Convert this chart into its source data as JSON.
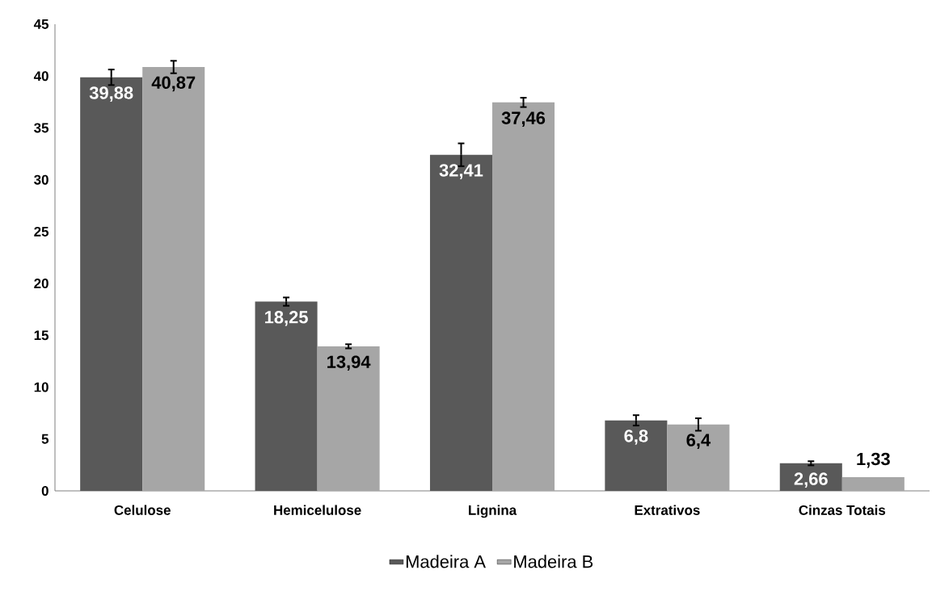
{
  "chart_data": {
    "type": "bar",
    "categories": [
      "Celulose",
      "Hemicelulose",
      "Lignina",
      "Extrativos",
      "Cinzas Totais"
    ],
    "series": [
      {
        "name": "Madeira A",
        "color": "#595959",
        "values": [
          39.88,
          18.25,
          32.41,
          6.8,
          2.66
        ],
        "errors": [
          0.75,
          0.4,
          1.1,
          0.5,
          0.2
        ],
        "value_labels": [
          "39,88",
          "18,25",
          "32,41",
          "6,8",
          "2,66"
        ]
      },
      {
        "name": "Madeira B",
        "color": "#a6a6a6",
        "values": [
          40.87,
          13.94,
          37.46,
          6.4,
          1.33
        ],
        "errors": [
          0.6,
          0.2,
          0.45,
          0.6,
          null
        ],
        "value_labels": [
          "40,87",
          "13,94",
          "37,46",
          "6,4",
          "1,33"
        ]
      }
    ],
    "ylim": [
      0,
      45
    ],
    "yticks": [
      0,
      5,
      10,
      15,
      20,
      25,
      30,
      35,
      40,
      45
    ],
    "legend": "bottom",
    "grid": false
  }
}
